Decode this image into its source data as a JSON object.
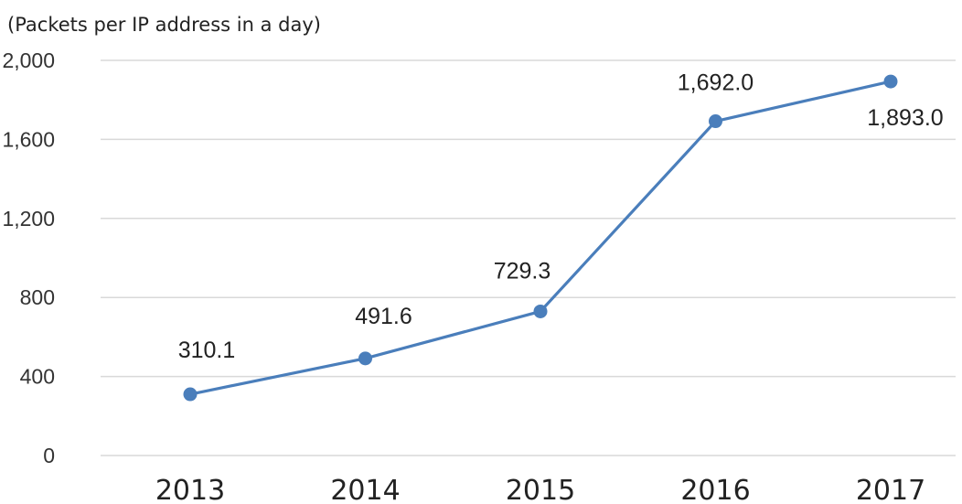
{
  "chart_data": {
    "type": "line",
    "title": "",
    "ylabel": "(Packets per IP address in a day)",
    "xlabel": "",
    "categories": [
      "2013",
      "2014",
      "2015",
      "2016",
      "2017"
    ],
    "series": [
      {
        "values": [
          310.1,
          491.6,
          729.3,
          1692.0,
          1893.0
        ],
        "labels": [
          "310.1",
          "491.6",
          "729.3",
          "1,692.0",
          "1,893.0"
        ],
        "color": "#4a7ebb"
      }
    ],
    "ylim": [
      0,
      2000
    ],
    "yticks": [
      0,
      400,
      800,
      1200,
      1600,
      2000
    ],
    "ytick_labels": [
      "0",
      "400",
      "800",
      "1,200",
      "1,600",
      "2,000"
    ],
    "grid": true,
    "legend": "none"
  }
}
